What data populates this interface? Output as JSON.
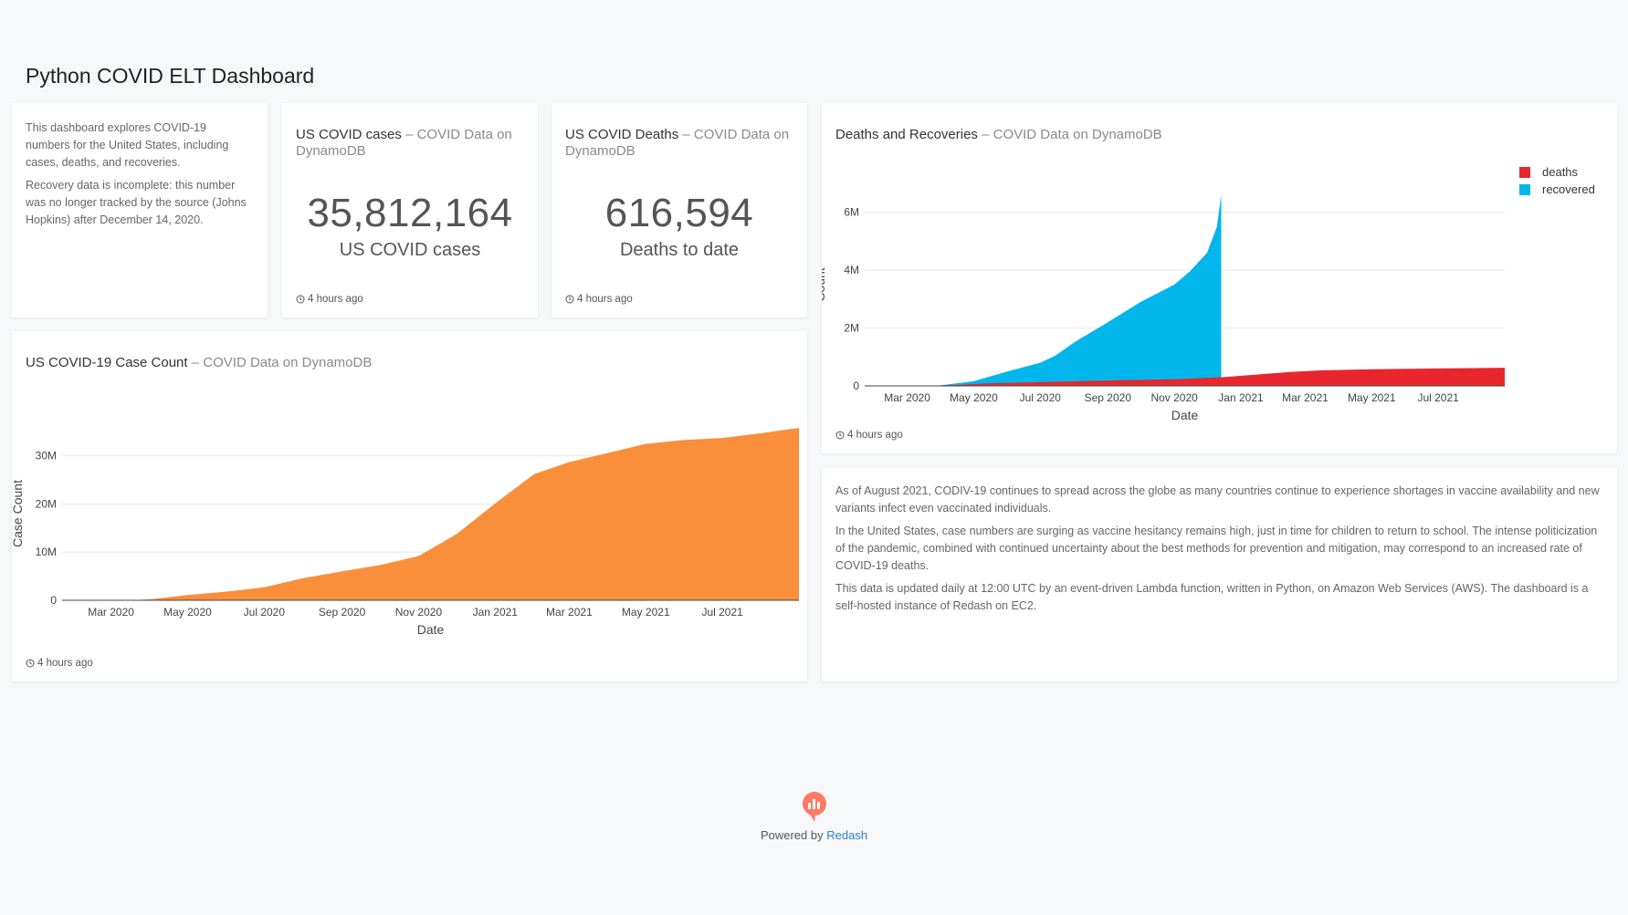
{
  "dashboard": {
    "title": "Python COVID ELT Dashboard"
  },
  "intro": {
    "p1": "This dashboard explores COVID-19 numbers for the United States, including cases, deaths, and recoveries.",
    "p2": "Recovery data is incomplete: this number was no longer tracked by the source (Johns Hopkins) after December 14, 2020."
  },
  "cases_counter": {
    "title": "US COVID cases",
    "separator": " – ",
    "source": "COVID Data on DynamoDB",
    "value": "35,812,164",
    "label": "US COVID cases",
    "updated": "4 hours ago"
  },
  "deaths_counter": {
    "title": "US COVID Deaths",
    "separator": " – ",
    "source": "COVID Data on DynamoDB",
    "value": "616,594",
    "label": "Deaths to date",
    "updated": "4 hours ago"
  },
  "deaths_recoveries": {
    "title": "Deaths and Recoveries",
    "separator": " – ",
    "source": "COVID Data on DynamoDB",
    "updated": "4 hours ago"
  },
  "case_count": {
    "title": "US COVID-19 Case Count",
    "separator": " – ",
    "source": "COVID Data on DynamoDB",
    "updated": "4 hours ago"
  },
  "notes": {
    "p1": "As of August 2021, CODIV-19 continues to spread across the globe as many countries continue to experience shortages in vaccine availability and new variants infect even vaccinated individuals.",
    "p2": "In the United States, case numbers are surging as vaccine hesitancy remains high, just in time for children to return to school. The intense politicization of the pandemic, combined with continued uncertainty about the best methods for prevention and mitigation, may correspond to an increased rate of COVID-19 deaths.",
    "p3": "This data is updated daily at 12:00 UTC by an event-driven Lambda function, written in Python, on Amazon Web Services (AWS). The dashboard is a self-hosted instance of Redash on EC2."
  },
  "footer": {
    "prefix": "Powered by",
    "brand": "Redash"
  },
  "chart_data": [
    {
      "id": "deaths_recoveries",
      "type": "area",
      "xlabel": "Date",
      "ylabel": "Count",
      "x_range": [
        "2020-01-22",
        "2021-08-31"
      ],
      "ylim": [
        0,
        7000000
      ],
      "yticks": [
        0,
        2000000,
        4000000,
        6000000
      ],
      "ytick_labels": [
        "0",
        "2M",
        "4M",
        "6M"
      ],
      "xtick_labels": [
        "Mar 2020",
        "May 2020",
        "Jul 2020",
        "Sep 2020",
        "Nov 2020",
        "Jan 2021",
        "Mar 2021",
        "May 2021",
        "Jul 2021"
      ],
      "xtick_dates": [
        "2020-03-01",
        "2020-05-01",
        "2020-07-01",
        "2020-09-01",
        "2020-11-01",
        "2021-01-01",
        "2021-03-01",
        "2021-05-01",
        "2021-07-01"
      ],
      "grid": true,
      "legend": "top-right",
      "series": [
        {
          "name": "recovered",
          "color": "#00b6eb",
          "x": [
            "2020-01-22",
            "2020-03-15",
            "2020-04-01",
            "2020-05-01",
            "2020-06-01",
            "2020-07-01",
            "2020-07-15",
            "2020-08-01",
            "2020-09-01",
            "2020-10-01",
            "2020-11-01",
            "2020-11-15",
            "2020-12-01",
            "2020-12-10",
            "2020-12-14"
          ],
          "values": [
            0,
            0,
            20000,
            160000,
            500000,
            800000,
            1050000,
            1500000,
            2200000,
            2900000,
            3500000,
            3950000,
            4600000,
            5500000,
            6600000
          ]
        },
        {
          "name": "deaths",
          "color": "#e9262e",
          "x": [
            "2020-01-22",
            "2020-03-15",
            "2020-04-15",
            "2020-05-15",
            "2020-07-01",
            "2020-09-01",
            "2020-11-01",
            "2020-12-15",
            "2021-01-15",
            "2021-02-15",
            "2021-03-15",
            "2021-05-01",
            "2021-07-01",
            "2021-08-31"
          ],
          "values": [
            0,
            100,
            30000,
            90000,
            130000,
            185000,
            230000,
            300000,
            390000,
            480000,
            535000,
            575000,
            605000,
            625000
          ]
        }
      ]
    },
    {
      "id": "case_count",
      "type": "area",
      "xlabel": "Date",
      "ylabel": "Case Count",
      "x_range": [
        "2020-01-22",
        "2021-08-31"
      ],
      "ylim": [
        0,
        36000000
      ],
      "yticks": [
        0,
        10000000,
        20000000,
        30000000
      ],
      "ytick_labels": [
        "0",
        "10M",
        "20M",
        "30M"
      ],
      "xtick_labels": [
        "Mar 2020",
        "May 2020",
        "Jul 2020",
        "Sep 2020",
        "Nov 2020",
        "Jan 2021",
        "Mar 2021",
        "May 2021",
        "Jul 2021"
      ],
      "xtick_dates": [
        "2020-03-01",
        "2020-05-01",
        "2020-07-01",
        "2020-09-01",
        "2020-11-01",
        "2021-01-01",
        "2021-03-01",
        "2021-05-01",
        "2021-07-01"
      ],
      "grid": true,
      "series": [
        {
          "name": "",
          "color": "#f98f3a",
          "x": [
            "2020-01-22",
            "2020-03-15",
            "2020-04-01",
            "2020-05-01",
            "2020-06-01",
            "2020-07-01",
            "2020-08-01",
            "2020-09-01",
            "2020-10-01",
            "2020-11-01",
            "2020-12-01",
            "2021-01-01",
            "2021-02-01",
            "2021-03-01",
            "2021-04-01",
            "2021-05-01",
            "2021-06-01",
            "2021-07-01",
            "2021-08-01",
            "2021-08-31"
          ],
          "values": [
            0,
            3000,
            200000,
            1100000,
            1800000,
            2700000,
            4600000,
            6000000,
            7300000,
            9200000,
            13700000,
            20100000,
            26200000,
            28700000,
            30600000,
            32500000,
            33300000,
            33700000,
            34700000,
            35812164
          ]
        }
      ]
    }
  ]
}
